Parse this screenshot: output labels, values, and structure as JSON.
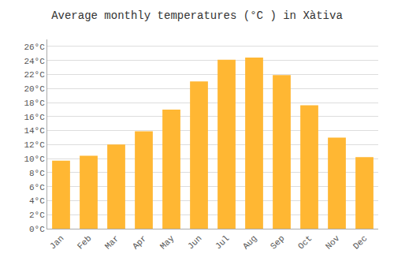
{
  "chart_data": {
    "type": "bar",
    "title": "Average monthly temperatures (°C ) in Xàtiva",
    "categories": [
      "Jan",
      "Feb",
      "Mar",
      "Apr",
      "May",
      "Jun",
      "Jul",
      "Aug",
      "Sep",
      "Oct",
      "Nov",
      "Dec"
    ],
    "values": [
      9.7,
      10.4,
      12.0,
      13.9,
      17.0,
      21.0,
      24.1,
      24.4,
      21.9,
      17.6,
      13.0,
      10.2
    ],
    "color": "#FFB733",
    "ylim": [
      0,
      27
    ],
    "yticks": [
      {
        "value": 0,
        "label": "0°C"
      },
      {
        "value": 2,
        "label": "2°C"
      },
      {
        "value": 4,
        "label": "4°C"
      },
      {
        "value": 6,
        "label": "6°C"
      },
      {
        "value": 8,
        "label": "8°C"
      },
      {
        "value": 10,
        "label": "10°C"
      },
      {
        "value": 12,
        "label": "12°C"
      },
      {
        "value": 14,
        "label": "14°C"
      },
      {
        "value": 16,
        "label": "16°C"
      },
      {
        "value": 18,
        "label": "18°C"
      },
      {
        "value": 20,
        "label": "20°C"
      },
      {
        "value": 22,
        "label": "22°C"
      },
      {
        "value": 24,
        "label": "24°C"
      },
      {
        "value": 26,
        "label": "26°C"
      }
    ],
    "grid": true
  }
}
